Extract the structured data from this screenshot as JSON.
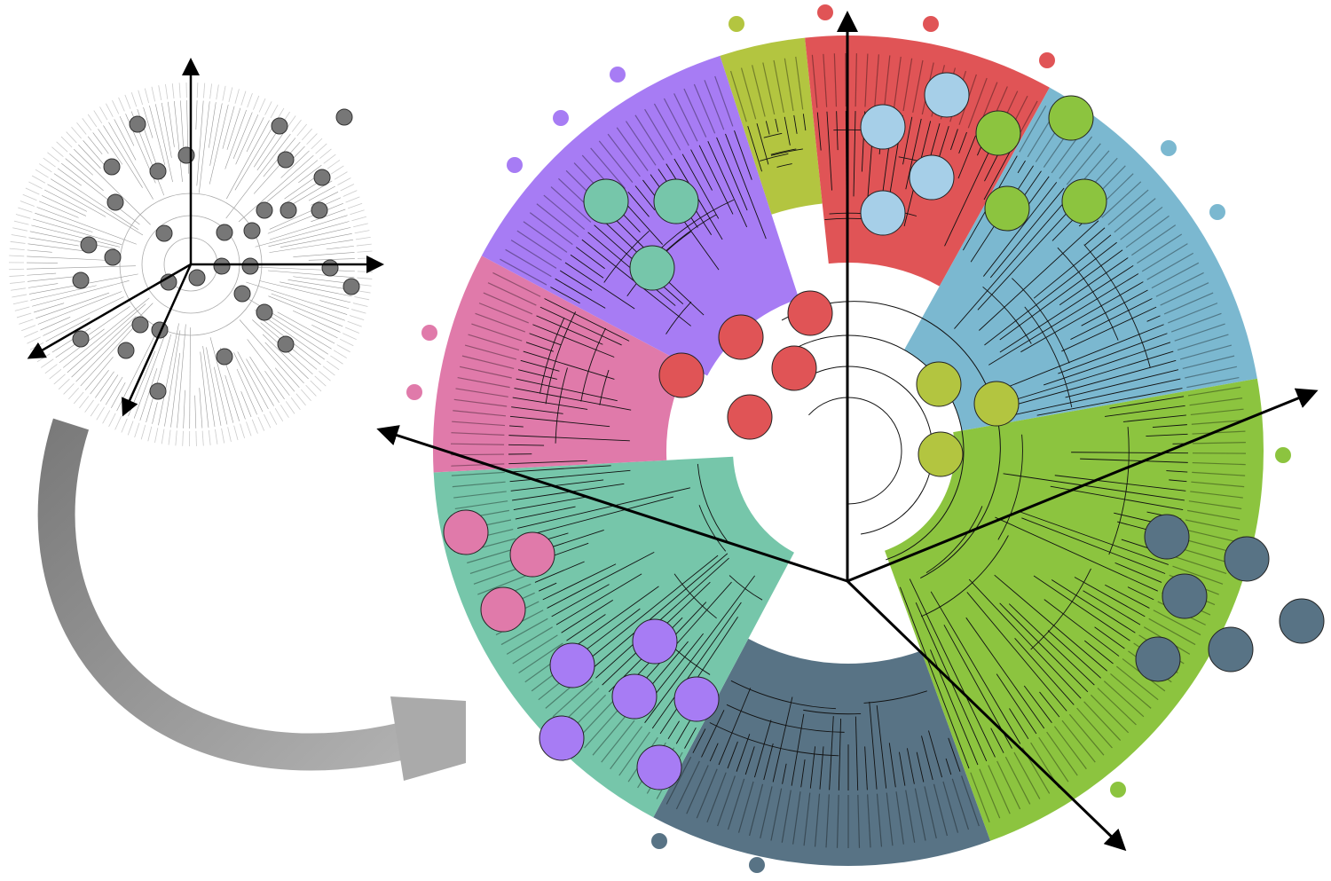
{
  "clades": [
    {
      "color": "#b3c540"
    },
    {
      "color": "#e05456"
    },
    {
      "color": "#7bb8d0"
    },
    {
      "color": "#8cc43f"
    },
    {
      "color": "#587385"
    },
    {
      "color": "#76c6aa"
    },
    {
      "color": "#e07aaa"
    },
    {
      "color": "#a77cf4"
    }
  ]
}
